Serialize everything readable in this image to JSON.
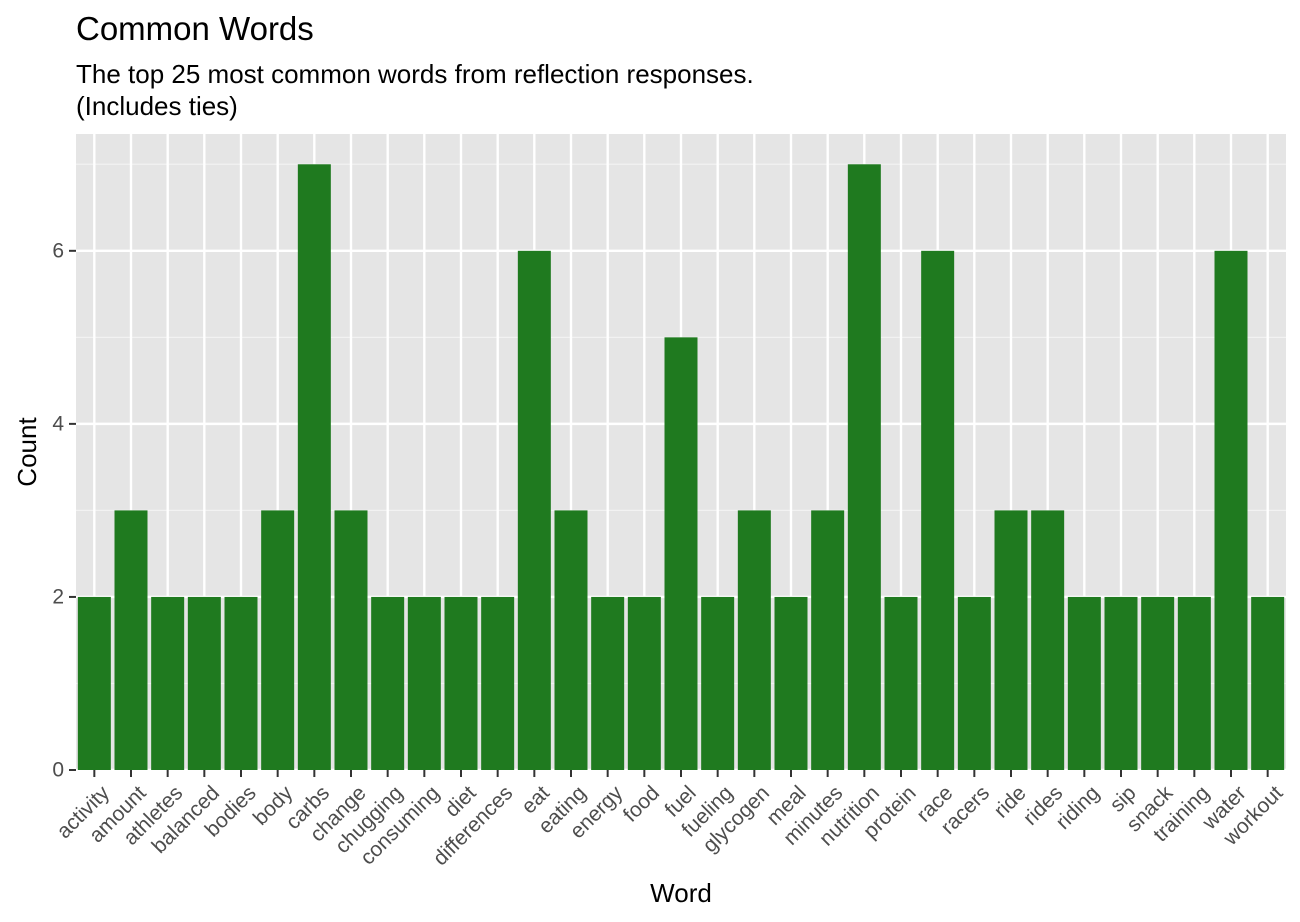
{
  "chart_data": {
    "type": "bar",
    "title": "Common Words",
    "subtitle": "The top 25 most common words from reflection responses.\n(Includes ties)",
    "xlabel": "Word",
    "ylabel": "Count",
    "categories": [
      "activity",
      "amount",
      "athletes",
      "balanced",
      "bodies",
      "body",
      "carbs",
      "change",
      "chugging",
      "consuming",
      "diet",
      "differences",
      "eat",
      "eating",
      "energy",
      "food",
      "fuel",
      "fueling",
      "glycogen",
      "meal",
      "minutes",
      "nutrition",
      "protein",
      "race",
      "racers",
      "ride",
      "rides",
      "riding",
      "sip",
      "snack",
      "training",
      "water",
      "workout"
    ],
    "values": [
      2,
      3,
      2,
      2,
      2,
      3,
      7,
      3,
      2,
      2,
      2,
      2,
      6,
      3,
      2,
      2,
      5,
      2,
      3,
      2,
      3,
      7,
      2,
      6,
      2,
      3,
      3,
      2,
      2,
      2,
      2,
      6,
      2
    ],
    "ylim": [
      0,
      7.35
    ],
    "yticks": [
      0,
      2,
      4,
      6
    ],
    "grid": true,
    "legend": "none",
    "colors": {
      "bar": "#1f7a1f",
      "panel": "#e5e5e5",
      "grid_major": "#ffffff",
      "grid_minor": "#f2f2f2",
      "tick_text": "#4d4d4d",
      "axis_title": "#000000"
    }
  }
}
